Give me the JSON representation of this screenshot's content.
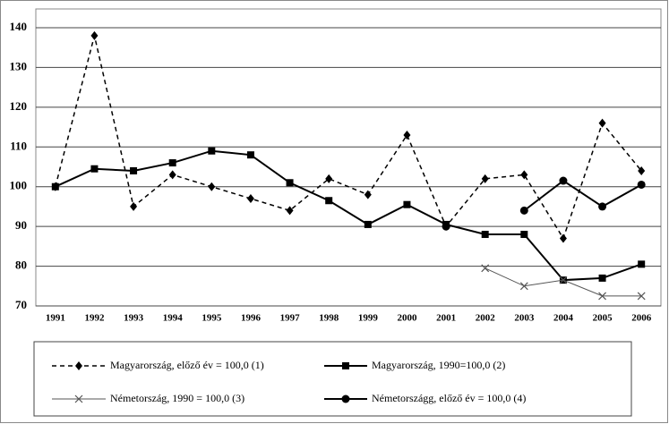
{
  "chart_data": {
    "type": "line",
    "categories": [
      "1991",
      "1992",
      "1993",
      "1994",
      "1995",
      "1996",
      "1997",
      "1998",
      "1999",
      "2000",
      "2001",
      "2002",
      "2003",
      "2004",
      "2005",
      "2006"
    ],
    "series": [
      {
        "name": "Magyarország, előző év = 100,0 (1)",
        "color": "#000000",
        "style": "dashed",
        "marker": "diamond",
        "values": [
          100,
          138,
          95,
          103,
          100,
          97,
          94,
          102,
          98,
          113,
          90,
          102,
          103,
          87,
          116,
          104
        ]
      },
      {
        "name": "Magyarország, 1990=100,0 (2)",
        "color": "#000000",
        "style": "solid",
        "marker": "square",
        "values": [
          100,
          104.5,
          104,
          106,
          109,
          108,
          101,
          96.5,
          90.5,
          95.5,
          90.5,
          88,
          88,
          76.5,
          77,
          80.5
        ]
      },
      {
        "name": "Németország, 1990 = 100,0  (3)",
        "color": "#555555",
        "style": "thin",
        "marker": "x",
        "values": [
          null,
          null,
          null,
          null,
          null,
          null,
          null,
          null,
          null,
          null,
          null,
          79.5,
          75,
          76.5,
          72.5,
          72.5
        ]
      },
      {
        "name": "Németországg, előző év = 100,0 (4)",
        "color": "#000000",
        "style": "solid",
        "marker": "circle",
        "values": [
          null,
          null,
          null,
          null,
          null,
          null,
          null,
          null,
          null,
          null,
          90,
          null,
          94,
          101.5,
          95,
          100.5
        ]
      }
    ],
    "ylim": [
      70,
      140
    ],
    "yticks": [
      70,
      80,
      90,
      100,
      110,
      120,
      130,
      140
    ],
    "grid": true,
    "legend": "bottom"
  }
}
